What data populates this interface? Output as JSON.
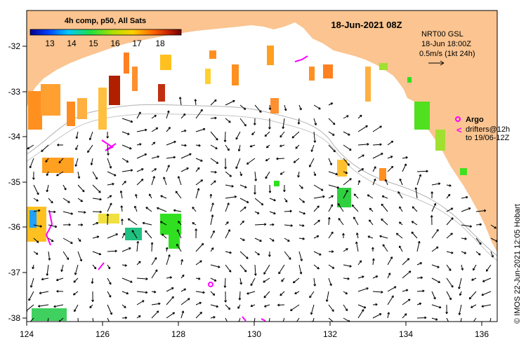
{
  "map": {
    "title": "18-Jun-2021 08Z",
    "colorbar": {
      "label": "4h comp, p50, All Sats",
      "ticks": [
        "13",
        "14",
        "15",
        "16",
        "17",
        "18"
      ],
      "colors": [
        "#0000a0",
        "#0050ff",
        "#00c0ff",
        "#20e040",
        "#c0e000",
        "#ffd000",
        "#ff7000",
        "#c02000",
        "#800000"
      ]
    },
    "current_legend": {
      "line1": "NRT00 GSL",
      "line2": "18-Jun 18:00Z",
      "line3": "0.5m/s (1kt 24h)"
    },
    "argo_legend": {
      "argo_label": "Argo",
      "drifters_line1": "drifters@12h",
      "drifters_line2": "to 19/06-12Z",
      "argo_symbol": "o",
      "drifter_symbol": "<"
    },
    "credit": "© IMOS 22-Jun-2021 12:05 Hobart",
    "x_ticks": [
      "124",
      "126",
      "128",
      "130",
      "132",
      "134",
      "136"
    ],
    "y_ticks": [
      "-32",
      "-33",
      "-34",
      "-35",
      "-36",
      "-37",
      "-38"
    ],
    "land_color": "#fbc490",
    "argo_color": "#ff00ff"
  }
}
